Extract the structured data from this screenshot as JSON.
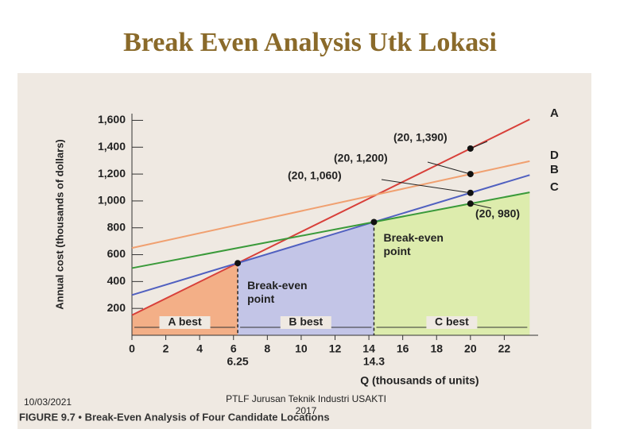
{
  "chart_data": {
    "type": "line",
    "title": "Break Even Analysis Utk Lokasi",
    "x_label": "Q (thousands of units)",
    "y_label": "Annual cost (thousands of dollars)",
    "x": [
      0,
      20,
      23.5
    ],
    "series": [
      {
        "name": "A",
        "color": "#d8403a",
        "values": [
          150,
          1390,
          1607
        ]
      },
      {
        "name": "D",
        "color": "#f0a070",
        "values": [
          650,
          1200,
          1296
        ]
      },
      {
        "name": "B",
        "color": "#5060c0",
        "values": [
          300,
          1060,
          1193
        ]
      },
      {
        "name": "C",
        "color": "#3a9a3a",
        "values": [
          500,
          980,
          1064
        ]
      }
    ],
    "xlim": [
      0,
      24
    ],
    "xticks": [
      0,
      2,
      4,
      6,
      8,
      10,
      12,
      14,
      16,
      18,
      20,
      22
    ],
    "ylim": [
      0,
      1650
    ],
    "yticks": [
      200,
      400,
      600,
      800,
      {
        "value": 1000,
        "label": "1,000"
      },
      {
        "value": 1200,
        "label": "1,200"
      },
      {
        "value": 1400,
        "label": "1,400"
      },
      {
        "value": 1600,
        "label": "1,600"
      }
    ],
    "break_even": [
      {
        "x": 6.25,
        "label": "6.25",
        "y": 537,
        "text": "Break-even point"
      },
      {
        "x": 14.3,
        "label": "14.3",
        "y": 843,
        "text": "Break-even point"
      }
    ],
    "regions": [
      {
        "text": "A best",
        "from": 0,
        "to": 6.25,
        "series": 0,
        "color": "#f4a070"
      },
      {
        "text": "B best",
        "from": 6.25,
        "to": 14.3,
        "series": 2,
        "color": "#b8bce8"
      },
      {
        "text": "C best",
        "from": 14.3,
        "to": 23.5,
        "series": 3,
        "color": "#d8eca0"
      }
    ],
    "annotations": [
      {
        "text": "(20, 1,390)",
        "x": 20,
        "y": 1390
      },
      {
        "text": "(20, 1,200)",
        "x": 20,
        "y": 1200
      },
      {
        "text": "(20, 1,060)",
        "x": 20,
        "y": 1060
      },
      {
        "text": "(20, 980)",
        "x": 20,
        "y": 980
      }
    ],
    "grid": false
  },
  "footer": {
    "date": "10/03/2021",
    "source": "PTLF Jurusan Teknik Industri USAKTI 2017",
    "caption": "FIGURE 9.7 • Break-Even Analysis of Four Candidate Locations"
  }
}
